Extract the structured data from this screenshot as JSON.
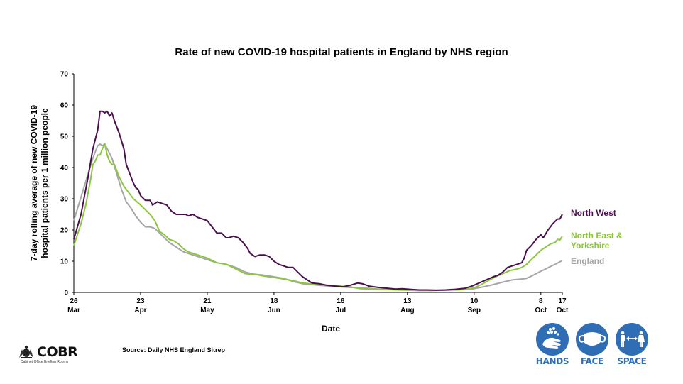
{
  "chart_data": {
    "type": "line",
    "title": "Rate of new COVID-19 hospital patients in England by NHS region",
    "xlabel": "Date",
    "ylabel": "7-day rolling average of new COVID-19 hospital patients per 1 million people",
    "ylabel_lines": [
      "7-day rolling average of new COVID-19",
      "hospital patients per 1 million people"
    ],
    "ylim": [
      0,
      70
    ],
    "yticks": [
      0,
      10,
      20,
      30,
      40,
      50,
      60,
      70
    ],
    "x_unit": "days since 26 Mar",
    "xlim": [
      0,
      205
    ],
    "xticks": [
      {
        "day": 0,
        "line1": "26",
        "line2": "Mar"
      },
      {
        "day": 28,
        "line1": "23",
        "line2": "Apr"
      },
      {
        "day": 56,
        "line1": "21",
        "line2": "May"
      },
      {
        "day": 84,
        "line1": "18",
        "line2": "Jun"
      },
      {
        "day": 112,
        "line1": "16",
        "line2": "Jul"
      },
      {
        "day": 140,
        "line1": "13",
        "line2": "Aug"
      },
      {
        "day": 168,
        "line1": "10",
        "line2": "Sep"
      },
      {
        "day": 196,
        "line1": "8",
        "line2": "Oct"
      },
      {
        "day": 205,
        "line1": "17",
        "line2": "Oct"
      }
    ],
    "grid": false,
    "legend": "inline-right",
    "series": [
      {
        "name": "North West",
        "label": "North West",
        "color": "#4b0f4e",
        "points": [
          [
            0,
            17
          ],
          [
            3,
            25
          ],
          [
            6,
            37
          ],
          [
            8,
            46
          ],
          [
            10,
            52
          ],
          [
            11,
            58
          ],
          [
            12,
            58
          ],
          [
            13,
            57.5
          ],
          [
            14,
            58
          ],
          [
            15,
            56.5
          ],
          [
            16,
            57.5
          ],
          [
            17,
            55
          ],
          [
            19,
            51
          ],
          [
            21,
            46
          ],
          [
            22,
            41
          ],
          [
            24,
            37
          ],
          [
            25,
            35
          ],
          [
            26,
            33.5
          ],
          [
            27,
            33
          ],
          [
            28,
            31
          ],
          [
            30,
            29.5
          ],
          [
            32,
            29.5
          ],
          [
            33,
            28
          ],
          [
            35,
            29
          ],
          [
            37,
            28.5
          ],
          [
            39,
            28
          ],
          [
            41,
            26
          ],
          [
            43,
            25
          ],
          [
            45,
            25
          ],
          [
            47,
            25
          ],
          [
            48,
            24.5
          ],
          [
            50,
            25
          ],
          [
            52,
            24
          ],
          [
            54,
            23.5
          ],
          [
            56,
            23
          ],
          [
            58,
            21
          ],
          [
            60,
            19
          ],
          [
            62,
            19
          ],
          [
            64,
            17.5
          ],
          [
            65,
            17.5
          ],
          [
            67,
            18
          ],
          [
            69,
            17.5
          ],
          [
            71,
            16
          ],
          [
            73,
            14
          ],
          [
            74,
            12.5
          ],
          [
            76,
            11.5
          ],
          [
            78,
            12
          ],
          [
            80,
            12
          ],
          [
            82,
            11.5
          ],
          [
            84,
            10
          ],
          [
            86,
            9
          ],
          [
            88,
            8.5
          ],
          [
            90,
            8
          ],
          [
            92,
            8
          ],
          [
            94,
            6.5
          ],
          [
            96,
            5
          ],
          [
            98,
            4
          ],
          [
            100,
            3
          ],
          [
            103,
            2.8
          ],
          [
            106,
            2.3
          ],
          [
            110,
            2
          ],
          [
            113,
            1.8
          ],
          [
            116,
            2.3
          ],
          [
            119,
            3
          ],
          [
            121,
            2.8
          ],
          [
            124,
            2
          ],
          [
            128,
            1.6
          ],
          [
            132,
            1.3
          ],
          [
            135,
            1.1
          ],
          [
            138,
            1.2
          ],
          [
            141,
            1
          ],
          [
            145,
            0.8
          ],
          [
            148,
            0.8
          ],
          [
            152,
            0.7
          ],
          [
            156,
            0.8
          ],
          [
            160,
            1
          ],
          [
            164,
            1.3
          ],
          [
            167,
            2
          ],
          [
            170,
            3
          ],
          [
            173,
            4
          ],
          [
            176,
            5
          ],
          [
            178,
            5.5
          ],
          [
            180,
            6.5
          ],
          [
            182,
            8
          ],
          [
            184,
            8.5
          ],
          [
            186,
            9
          ],
          [
            188,
            9.5
          ],
          [
            189,
            11
          ],
          [
            190,
            13.5
          ],
          [
            192,
            15
          ],
          [
            194,
            17
          ],
          [
            196,
            18.5
          ],
          [
            197,
            17.5
          ],
          [
            199,
            20
          ],
          [
            201,
            22
          ],
          [
            203,
            23.5
          ],
          [
            204,
            23.5
          ],
          [
            205,
            25
          ]
        ]
      },
      {
        "name": "North East & Yorkshire",
        "label_lines": [
          "North East &",
          "Yorkshire"
        ],
        "color": "#8cc63f",
        "points": [
          [
            0,
            15
          ],
          [
            3,
            22
          ],
          [
            5,
            28
          ],
          [
            7,
            36
          ],
          [
            8,
            41
          ],
          [
            9,
            42
          ],
          [
            10,
            44
          ],
          [
            11,
            44
          ],
          [
            12,
            46
          ],
          [
            13,
            47.5
          ],
          [
            14,
            44
          ],
          [
            15,
            42
          ],
          [
            16,
            41
          ],
          [
            17,
            41
          ],
          [
            19,
            37
          ],
          [
            21,
            34
          ],
          [
            23,
            32
          ],
          [
            25,
            30
          ],
          [
            28,
            28
          ],
          [
            30,
            26.5
          ],
          [
            32,
            25
          ],
          [
            34,
            23
          ],
          [
            36,
            19.5
          ],
          [
            38,
            18.5
          ],
          [
            40,
            17
          ],
          [
            42,
            16.5
          ],
          [
            44,
            15.5
          ],
          [
            46,
            14
          ],
          [
            48,
            13
          ],
          [
            50,
            12.5
          ],
          [
            52,
            12
          ],
          [
            56,
            11
          ],
          [
            60,
            9.5
          ],
          [
            64,
            9
          ],
          [
            68,
            7.5
          ],
          [
            72,
            6
          ],
          [
            76,
            5.8
          ],
          [
            80,
            5.2
          ],
          [
            84,
            4.8
          ],
          [
            88,
            4.3
          ],
          [
            92,
            3.8
          ],
          [
            96,
            3
          ],
          [
            100,
            2.7
          ],
          [
            104,
            2.5
          ],
          [
            108,
            2.2
          ],
          [
            112,
            2
          ],
          [
            116,
            1.8
          ],
          [
            120,
            1.2
          ],
          [
            124,
            1.1
          ],
          [
            128,
            1
          ],
          [
            132,
            0.9
          ],
          [
            136,
            0.8
          ],
          [
            140,
            0.7
          ],
          [
            145,
            0.6
          ],
          [
            150,
            0.6
          ],
          [
            155,
            0.7
          ],
          [
            160,
            0.8
          ],
          [
            164,
            1
          ],
          [
            168,
            1.5
          ],
          [
            171,
            2.5
          ],
          [
            174,
            3.8
          ],
          [
            177,
            5
          ],
          [
            180,
            6
          ],
          [
            183,
            7
          ],
          [
            186,
            7.5
          ],
          [
            188,
            8
          ],
          [
            190,
            9
          ],
          [
            192,
            10.5
          ],
          [
            194,
            12
          ],
          [
            196,
            13.5
          ],
          [
            198,
            14.5
          ],
          [
            200,
            15.5
          ],
          [
            202,
            16
          ],
          [
            203,
            17
          ],
          [
            204,
            16.8
          ],
          [
            205,
            18
          ]
        ]
      },
      {
        "name": "England",
        "label": "England",
        "color": "#a6a6a6",
        "points": [
          [
            0,
            23
          ],
          [
            2,
            28
          ],
          [
            4,
            33
          ],
          [
            6,
            38
          ],
          [
            8,
            43
          ],
          [
            10,
            47
          ],
          [
            11,
            47.5
          ],
          [
            12,
            47
          ],
          [
            13,
            47.5
          ],
          [
            14,
            46
          ],
          [
            16,
            43
          ],
          [
            18,
            38
          ],
          [
            20,
            33
          ],
          [
            22,
            29
          ],
          [
            24,
            27
          ],
          [
            26,
            24.5
          ],
          [
            28,
            22.5
          ],
          [
            30,
            21
          ],
          [
            32,
            21
          ],
          [
            34,
            20.5
          ],
          [
            36,
            19
          ],
          [
            38,
            17.5
          ],
          [
            40,
            16
          ],
          [
            42,
            15
          ],
          [
            44,
            14
          ],
          [
            46,
            13
          ],
          [
            48,
            12.5
          ],
          [
            52,
            11.5
          ],
          [
            56,
            10.5
          ],
          [
            60,
            9.5
          ],
          [
            64,
            9
          ],
          [
            68,
            8
          ],
          [
            72,
            6.5
          ],
          [
            76,
            5.8
          ],
          [
            80,
            5.5
          ],
          [
            84,
            5
          ],
          [
            88,
            4.5
          ],
          [
            92,
            3.5
          ],
          [
            96,
            2.8
          ],
          [
            100,
            2.5
          ],
          [
            104,
            2.2
          ],
          [
            108,
            2
          ],
          [
            112,
            1.8
          ],
          [
            116,
            1.6
          ],
          [
            120,
            1.5
          ],
          [
            124,
            1.3
          ],
          [
            128,
            1.1
          ],
          [
            132,
            1
          ],
          [
            136,
            0.9
          ],
          [
            140,
            0.8
          ],
          [
            145,
            0.7
          ],
          [
            150,
            0.7
          ],
          [
            155,
            0.7
          ],
          [
            160,
            0.8
          ],
          [
            164,
            0.9
          ],
          [
            168,
            1.2
          ],
          [
            172,
            1.8
          ],
          [
            176,
            2.5
          ],
          [
            180,
            3.3
          ],
          [
            184,
            4
          ],
          [
            188,
            4.3
          ],
          [
            190,
            4.5
          ],
          [
            192,
            5.2
          ],
          [
            194,
            6
          ],
          [
            196,
            6.8
          ],
          [
            198,
            7.5
          ],
          [
            200,
            8.3
          ],
          [
            202,
            9
          ],
          [
            204,
            9.8
          ],
          [
            205,
            10.2
          ]
        ]
      }
    ]
  },
  "footer": {
    "source": "Source: Daily NHS England Sitrep",
    "logo_name": "COBR",
    "logo_subtitle": "Cabinet Office Briefing Rooms",
    "campaign": [
      "HANDS",
      "FACE",
      "SPACE"
    ],
    "campaign_color": "#2f6db5"
  }
}
